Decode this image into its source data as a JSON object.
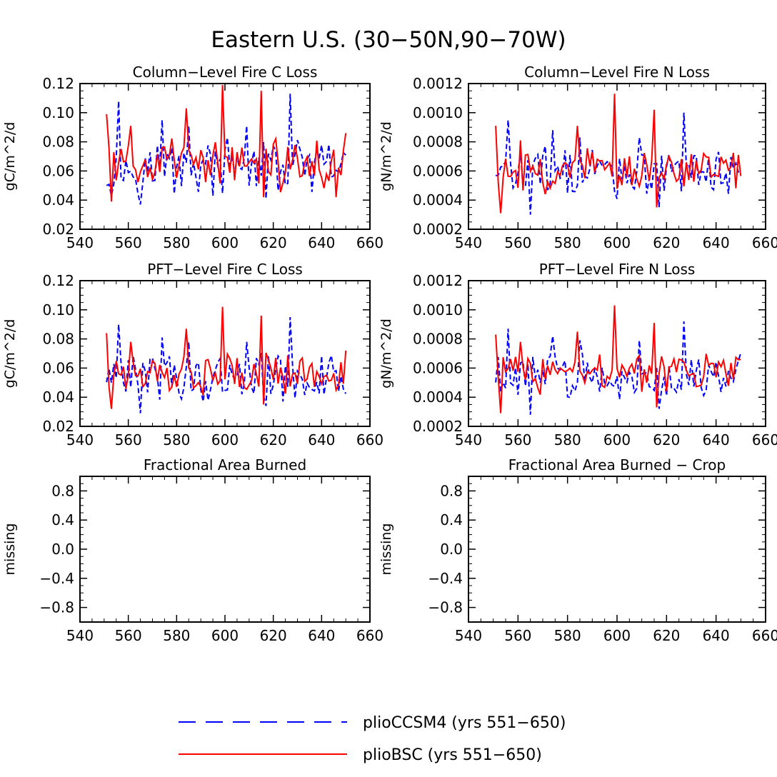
{
  "figure_title": "Eastern U.S. (30−50N,90−70W)",
  "legend": [
    {
      "label": "plioCCSM4 (yrs 551−650)",
      "color": "#0000ff",
      "dash": "dashed"
    },
    {
      "label": "plioBSC (yrs 551−650)",
      "color": "#ff0000",
      "dash": "solid"
    }
  ],
  "chart_data": [
    {
      "type": "line",
      "title": "Column−Level Fire C Loss",
      "ylabel": "gC/m^2/d",
      "xlim": [
        540,
        660
      ],
      "ylim": [
        0.02,
        0.12
      ],
      "xticks": [
        "540",
        "560",
        "580",
        "600",
        "620",
        "640",
        "660"
      ],
      "yticks": [
        "0.02",
        "0.04",
        "0.06",
        "0.08",
        "0.10",
        "0.12"
      ],
      "ytick_values": [
        0.02,
        0.04,
        0.06,
        0.08,
        0.1,
        0.12
      ],
      "x_start": 551,
      "x_end": 650,
      "series": [
        {
          "name": "plioCCSM4",
          "base": 0.062,
          "amp": 0.016,
          "peaks": [
            [
              556,
              0.108
            ],
            [
              565,
              0.037
            ],
            [
              574,
              0.095
            ],
            [
              585,
              0.091
            ],
            [
              609,
              0.091
            ],
            [
              627,
              0.113
            ],
            [
              617,
              0.041
            ]
          ]
        },
        {
          "name": "plioBSC",
          "base": 0.064,
          "amp": 0.014,
          "peaks": [
            [
              551,
              0.099
            ],
            [
              553,
              0.039
            ],
            [
              561,
              0.091
            ],
            [
              584,
              0.103
            ],
            [
              599,
              0.119
            ],
            [
              615,
              0.115
            ],
            [
              616,
              0.042
            ],
            [
              646,
              0.042
            ],
            [
              650,
              0.086
            ]
          ]
        }
      ]
    },
    {
      "type": "line",
      "title": "Column−Level Fire N Loss",
      "ylabel": "gN/m^2/d",
      "xlim": [
        540,
        660
      ],
      "ylim": [
        0.0002,
        0.0012
      ],
      "xticks": [
        "540",
        "560",
        "580",
        "600",
        "620",
        "640",
        "660"
      ],
      "yticks": [
        "0.0002",
        "0.0004",
        "0.0006",
        "0.0008",
        "0.0010",
        "0.0012"
      ],
      "ytick_values": [
        0.0002,
        0.0004,
        0.0006,
        0.0008,
        0.001,
        0.0012
      ],
      "x_start": 551,
      "x_end": 650,
      "series": [
        {
          "name": "plioCCSM4",
          "base": 0.00059,
          "amp": 0.00014,
          "peaks": [
            [
              556,
              0.00095
            ],
            [
              565,
              0.0003
            ],
            [
              574,
              0.00088
            ],
            [
              585,
              0.00083
            ],
            [
              609,
              0.00083
            ],
            [
              627,
              0.001
            ],
            [
              617,
              0.00035
            ]
          ]
        },
        {
          "name": "plioBSC",
          "base": 0.0006,
          "amp": 0.00013,
          "peaks": [
            [
              551,
              0.00091
            ],
            [
              553,
              0.00031
            ],
            [
              561,
              0.00081
            ],
            [
              584,
              0.00091
            ],
            [
              599,
              0.00113
            ],
            [
              615,
              0.00102
            ],
            [
              616,
              0.00035
            ],
            [
              649,
              0.00071
            ]
          ]
        }
      ]
    },
    {
      "type": "line",
      "title": "PFT−Level Fire C Loss",
      "ylabel": "gC/m^2/d",
      "xlim": [
        540,
        660
      ],
      "ylim": [
        0.02,
        0.12
      ],
      "xticks": [
        "540",
        "560",
        "580",
        "600",
        "620",
        "640",
        "660"
      ],
      "yticks": [
        "0.02",
        "0.04",
        "0.06",
        "0.08",
        "0.10",
        "0.12"
      ],
      "ytick_values": [
        0.02,
        0.04,
        0.06,
        0.08,
        0.1,
        0.12
      ],
      "x_start": 551,
      "x_end": 650,
      "series": [
        {
          "name": "plioCCSM4",
          "base": 0.054,
          "amp": 0.014,
          "peaks": [
            [
              556,
              0.09
            ],
            [
              565,
              0.029
            ],
            [
              574,
              0.081
            ],
            [
              585,
              0.078
            ],
            [
              609,
              0.078
            ],
            [
              627,
              0.095
            ],
            [
              617,
              0.034
            ]
          ]
        },
        {
          "name": "plioBSC",
          "base": 0.056,
          "amp": 0.012,
          "peaks": [
            [
              551,
              0.084
            ],
            [
              553,
              0.032
            ],
            [
              561,
              0.078
            ],
            [
              584,
              0.087
            ],
            [
              599,
              0.102
            ],
            [
              615,
              0.096
            ],
            [
              616,
              0.035
            ],
            [
              650,
              0.072
            ]
          ]
        }
      ]
    },
    {
      "type": "line",
      "title": "PFT−Level Fire N Loss",
      "ylabel": "gN/m^2/d",
      "xlim": [
        540,
        660
      ],
      "ylim": [
        0.0002,
        0.0012
      ],
      "xticks": [
        "540",
        "560",
        "580",
        "600",
        "620",
        "640",
        "660"
      ],
      "yticks": [
        "0.0002",
        "0.0004",
        "0.0006",
        "0.0008",
        "0.0010",
        "0.0012"
      ],
      "ytick_values": [
        0.0002,
        0.0004,
        0.0006,
        0.0008,
        0.001,
        0.0012
      ],
      "x_start": 551,
      "x_end": 650,
      "series": [
        {
          "name": "plioCCSM4",
          "base": 0.00055,
          "amp": 0.00013,
          "peaks": [
            [
              556,
              0.00087
            ],
            [
              565,
              0.00028
            ],
            [
              574,
              0.00082
            ],
            [
              585,
              0.00079
            ],
            [
              609,
              0.00079
            ],
            [
              627,
              0.00092
            ],
            [
              617,
              0.00032
            ]
          ]
        },
        {
          "name": "plioBSC",
          "base": 0.00056,
          "amp": 0.00012,
          "peaks": [
            [
              551,
              0.00083
            ],
            [
              553,
              0.00029
            ],
            [
              561,
              0.00078
            ],
            [
              584,
              0.00085
            ],
            [
              599,
              0.00103
            ],
            [
              615,
              0.00091
            ],
            [
              616,
              0.00033
            ],
            [
              650,
              0.00066
            ]
          ]
        }
      ]
    },
    {
      "type": "line",
      "title": "Fractional Area Burned",
      "ylabel": "missing",
      "xlim": [
        540,
        660
      ],
      "ylim": [
        -1.0,
        1.0
      ],
      "xticks": [
        "540",
        "560",
        "580",
        "600",
        "620",
        "640",
        "660"
      ],
      "yticks": [
        "−0.8",
        "−0.4",
        "0.0",
        "0.4",
        "0.8"
      ],
      "ytick_values": [
        -0.8,
        -0.4,
        0.0,
        0.4,
        0.8
      ],
      "series": []
    },
    {
      "type": "line",
      "title": "Fractional Area Burned − Crop",
      "ylabel": "missing",
      "xlim": [
        540,
        660
      ],
      "ylim": [
        -1.0,
        1.0
      ],
      "xticks": [
        "540",
        "560",
        "580",
        "600",
        "620",
        "640",
        "660"
      ],
      "yticks": [
        "−0.8",
        "−0.4",
        "0.0",
        "0.4",
        "0.8"
      ],
      "ytick_values": [
        -0.8,
        -0.4,
        0.0,
        0.4,
        0.8
      ],
      "series": []
    }
  ]
}
